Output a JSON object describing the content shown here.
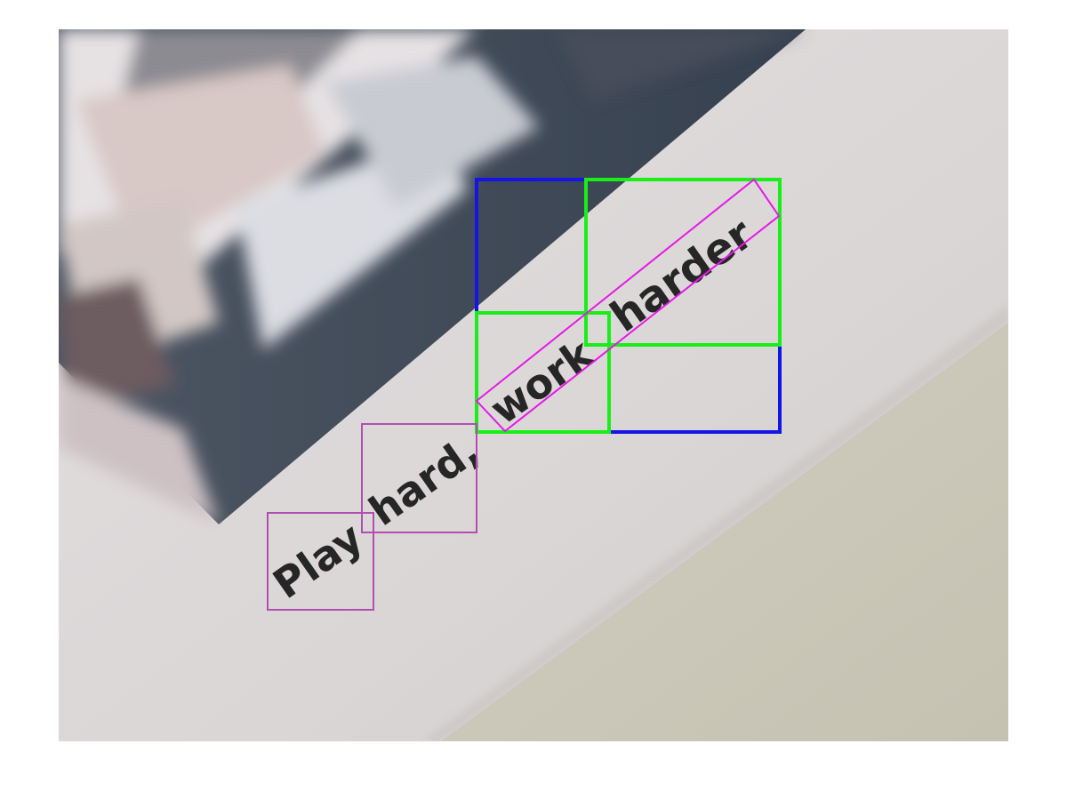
{
  "words": [
    {
      "text": "Play",
      "group": "purple"
    },
    {
      "text": "hard,",
      "group": "purple"
    },
    {
      "text": "work",
      "group": "magenta"
    },
    {
      "text": "harder",
      "group": "magenta"
    }
  ],
  "colors": {
    "blue_box": "#1414e6",
    "green_box": "#19ee19",
    "magenta_box": "#e619e6",
    "purple_box": "#b14fb1",
    "paper": "#dcd8d8",
    "wall": "#cbc7b9",
    "ink": "#262626",
    "dark_band": "#3c4a58"
  }
}
